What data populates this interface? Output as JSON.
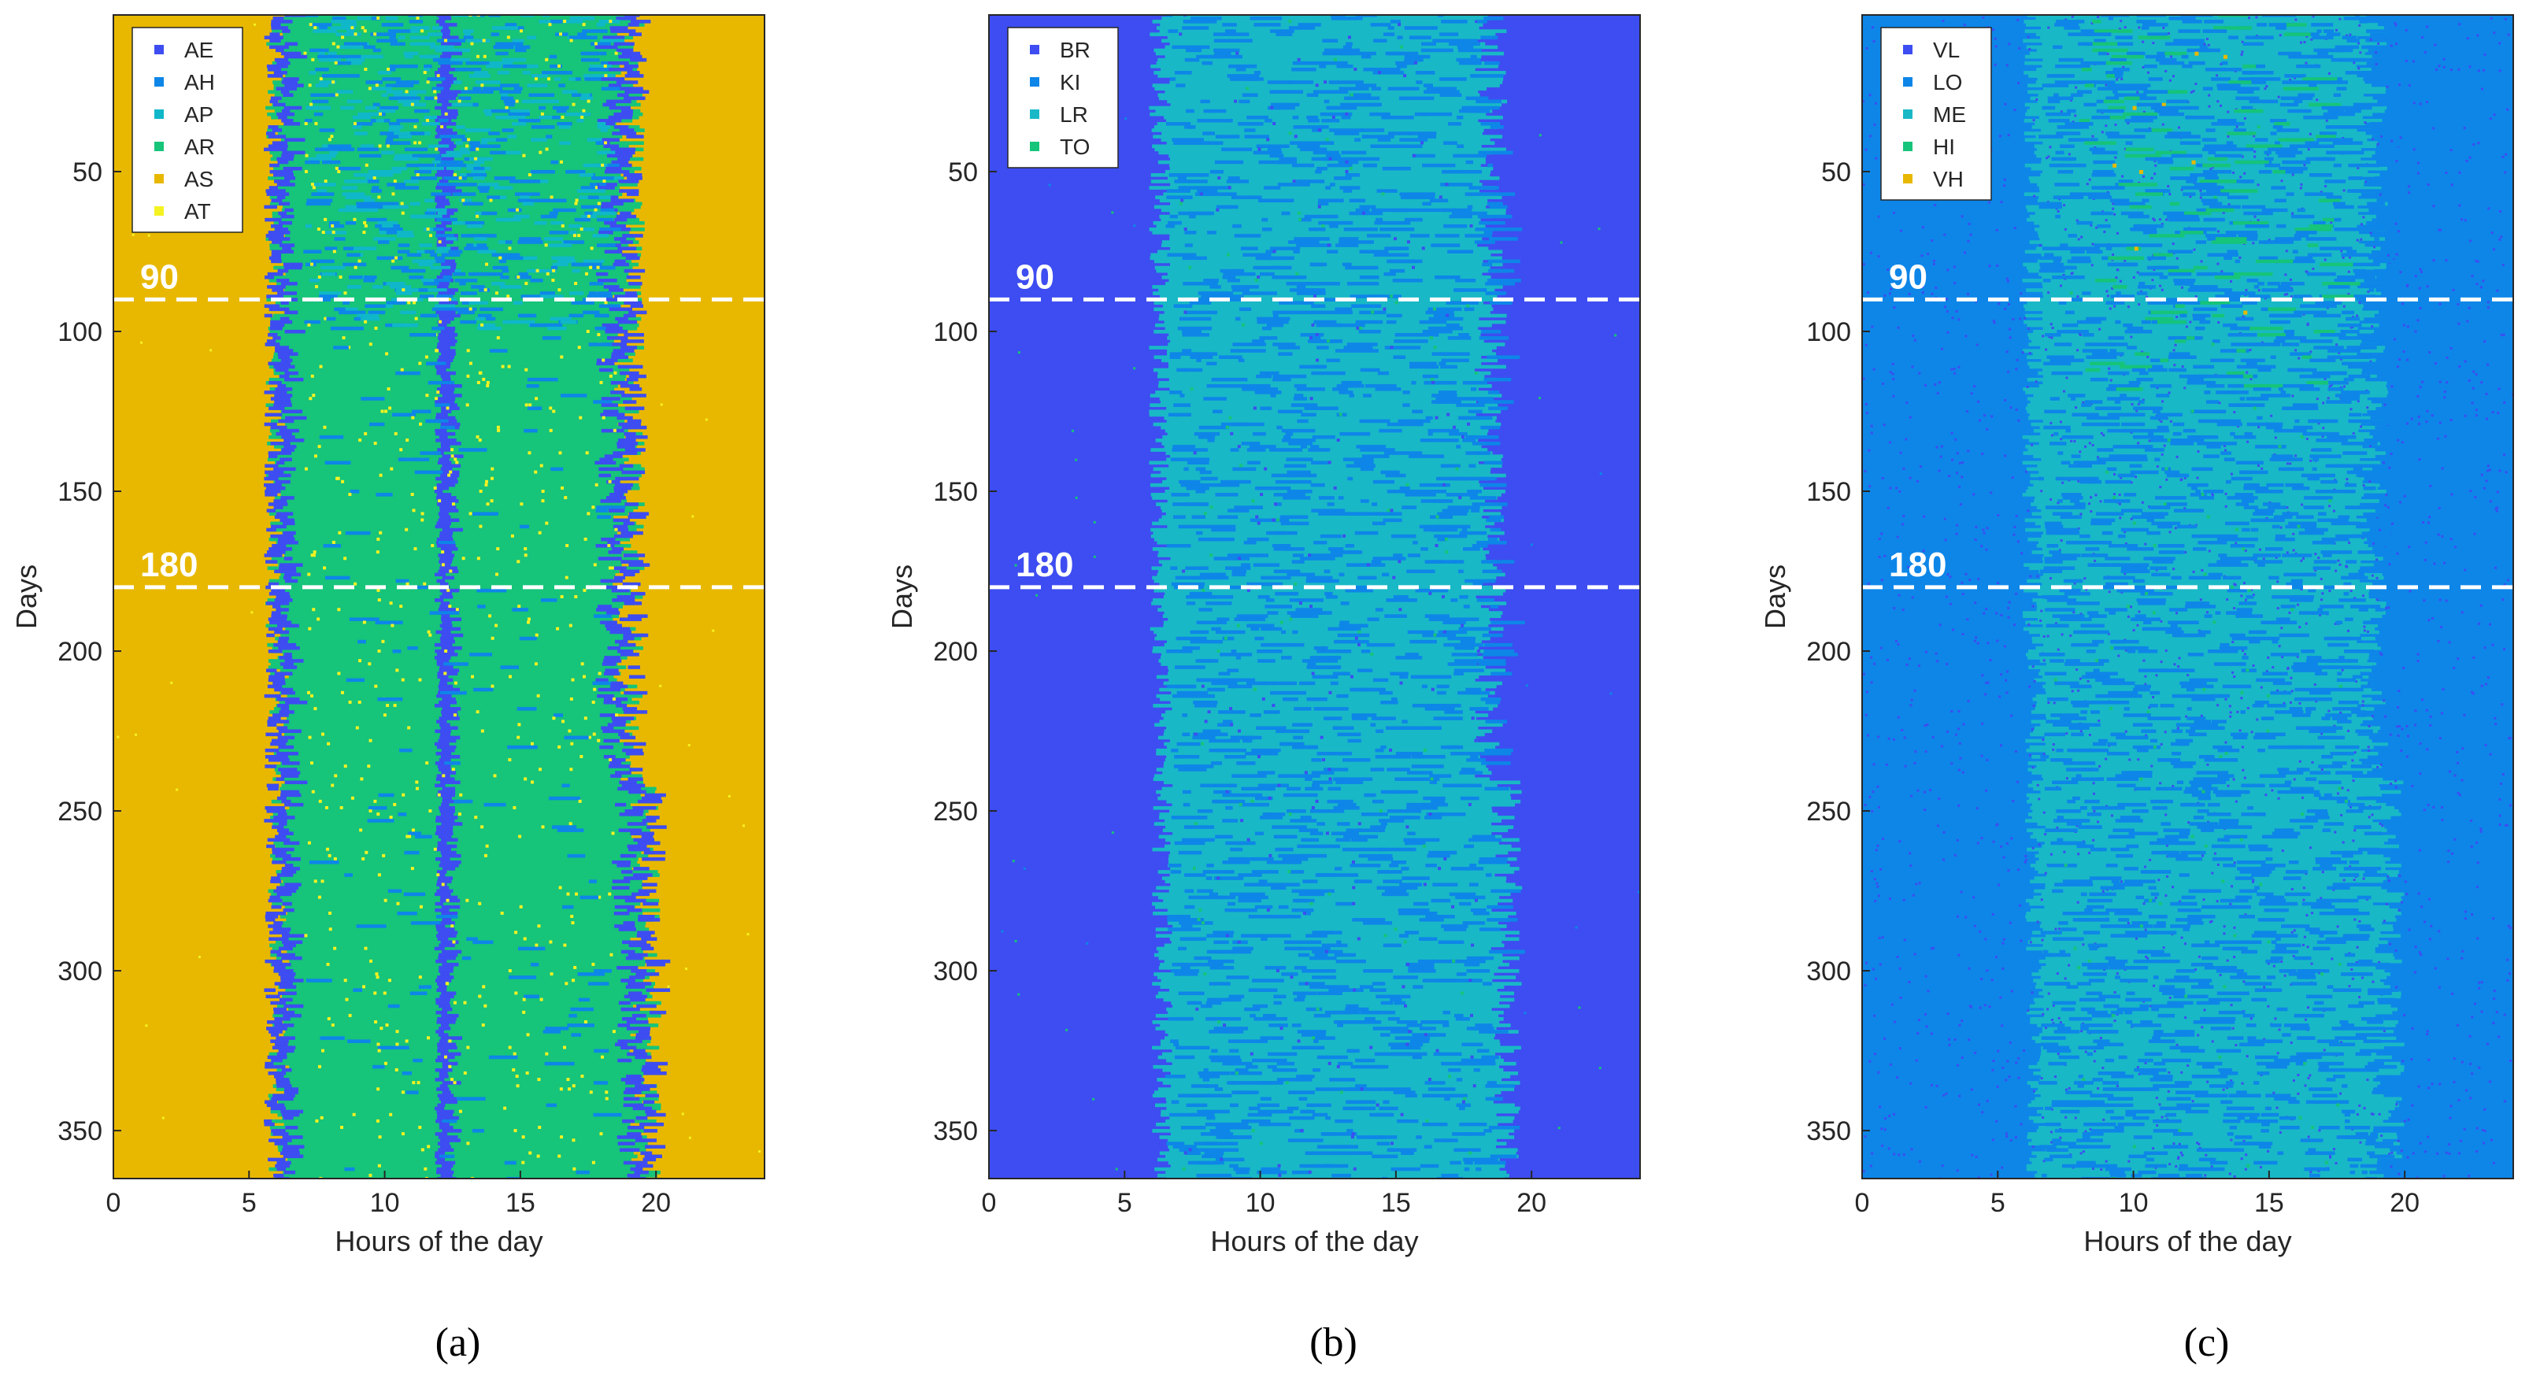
{
  "figure": {
    "shared_axes": {
      "xlabel": "Hours of the day",
      "ylabel": "Days",
      "xlim": [
        0,
        24
      ],
      "ylim": [
        1,
        365
      ],
      "y_reversed": true,
      "xticks": [
        0,
        5,
        10,
        15,
        20
      ],
      "yticks": [
        50,
        100,
        150,
        200,
        250,
        300,
        350
      ],
      "day_markers": [
        90,
        180
      ]
    }
  },
  "chart_data": [
    {
      "type": "heatmap",
      "caption": "(a)",
      "xlabel": "Hours of the day",
      "ylabel": "Days",
      "xlim": [
        0,
        24
      ],
      "ylim": [
        1,
        365
      ],
      "xticks": [
        0,
        5,
        10,
        15,
        20
      ],
      "yticks": [
        50,
        100,
        150,
        200,
        250,
        300,
        350
      ],
      "day_markers": [
        90,
        180
      ],
      "background_category": "AS",
      "dominant_category": "AR",
      "active_hours": [
        6,
        19
      ],
      "midday_break_hour": 12.3,
      "legend": [
        {
          "label": "AE",
          "color": "#3d4df1"
        },
        {
          "label": "AH",
          "color": "#0d86e8"
        },
        {
          "label": "AP",
          "color": "#0fb7c9"
        },
        {
          "label": "AR",
          "color": "#16c47a"
        },
        {
          "label": "AS",
          "color": "#e8b800"
        },
        {
          "label": "AT",
          "color": "#f5f221"
        }
      ]
    },
    {
      "type": "heatmap",
      "caption": "(b)",
      "xlabel": "Hours of the day",
      "ylabel": "Days",
      "xlim": [
        0,
        24
      ],
      "ylim": [
        1,
        365
      ],
      "xticks": [
        0,
        5,
        10,
        15,
        20
      ],
      "yticks": [
        50,
        100,
        150,
        200,
        250,
        300,
        350
      ],
      "day_markers": [
        90,
        180
      ],
      "background_category": "BR",
      "dominant_category": "LR",
      "active_hours": [
        6.3,
        18.5
      ],
      "legend": [
        {
          "label": "BR",
          "color": "#3d4df1"
        },
        {
          "label": "KI",
          "color": "#0d86e8"
        },
        {
          "label": "LR",
          "color": "#19b8c6"
        },
        {
          "label": "TO",
          "color": "#16c47a"
        }
      ]
    },
    {
      "type": "heatmap",
      "caption": "(c)",
      "xlabel": "Hours of the day",
      "ylabel": "Days",
      "xlim": [
        0,
        24
      ],
      "ylim": [
        1,
        365
      ],
      "xticks": [
        0,
        5,
        10,
        15,
        20
      ],
      "yticks": [
        50,
        100,
        150,
        200,
        250,
        300,
        350
      ],
      "day_markers": [
        90,
        180
      ],
      "background_category": "LO",
      "dominant_category": "ME",
      "active_hours": [
        6.3,
        18.8
      ],
      "legend": [
        {
          "label": "VL",
          "color": "#3d4df1"
        },
        {
          "label": "LO",
          "color": "#0d86e8"
        },
        {
          "label": "ME",
          "color": "#19b8c6"
        },
        {
          "label": "HI",
          "color": "#16c47a"
        },
        {
          "label": "VH",
          "color": "#e8b800"
        }
      ]
    }
  ]
}
